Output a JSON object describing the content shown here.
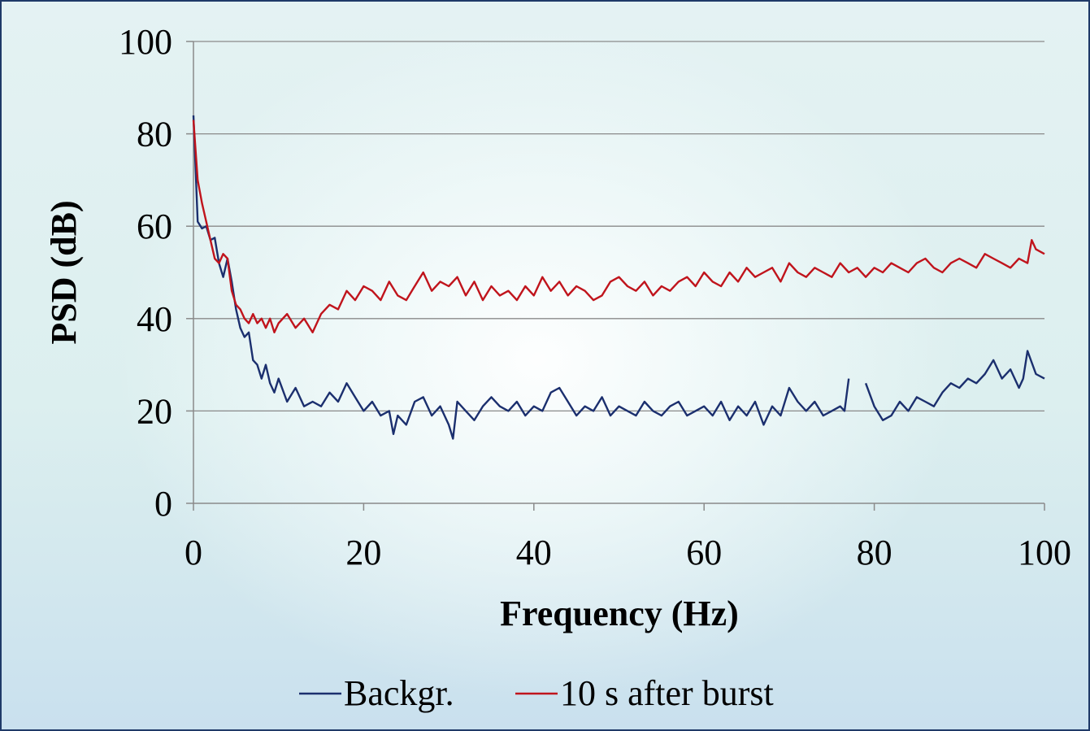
{
  "chart_data": {
    "type": "line",
    "title": "",
    "xlabel": "Frequency (Hz)",
    "ylabel": "PSD (dB)",
    "xlim": [
      0,
      100
    ],
    "ylim": [
      0,
      100
    ],
    "xticks": [
      0,
      20,
      40,
      60,
      80,
      100
    ],
    "yticks": [
      0,
      20,
      40,
      60,
      80,
      100
    ],
    "grid": "horizontal",
    "legend_position": "bottom",
    "series": [
      {
        "name": "Backgr.",
        "color": "#1b2f6e",
        "x": [
          0,
          0.5,
          1,
          1.5,
          2,
          2.5,
          3,
          3.5,
          4,
          4.5,
          5,
          5.5,
          6,
          6.5,
          7,
          7.5,
          8,
          8.5,
          9,
          9.5,
          10,
          11,
          12,
          13,
          14,
          15,
          16,
          17,
          18,
          19,
          20,
          21,
          22,
          23,
          23.5,
          24,
          25,
          26,
          27,
          28,
          29,
          30,
          30.5,
          31,
          32,
          33,
          34,
          35,
          36,
          37,
          38,
          39,
          40,
          41,
          42,
          43,
          44,
          45,
          46,
          47,
          48,
          49,
          50,
          51,
          52,
          53,
          54,
          55,
          56,
          57,
          58,
          59,
          60,
          61,
          62,
          63,
          64,
          65,
          66,
          67,
          68,
          69,
          70,
          71,
          72,
          73,
          74,
          75,
          76,
          76.5,
          77,
          78,
          79,
          80,
          81,
          82,
          83,
          84,
          85,
          86,
          87,
          88,
          89,
          90,
          91,
          92,
          93,
          94,
          95,
          96,
          97,
          97.5,
          98,
          99,
          100
        ],
        "y": [
          84,
          61,
          59.5,
          60,
          57,
          57.5,
          52,
          49,
          53,
          48,
          42,
          38,
          36,
          37,
          31,
          30,
          27,
          30,
          26,
          24,
          27,
          22,
          25,
          21,
          22,
          21,
          24,
          22,
          26,
          23,
          20,
          22,
          19,
          20,
          15,
          19,
          17,
          22,
          23,
          19,
          21,
          17,
          14,
          22,
          20,
          18,
          21,
          23,
          21,
          20,
          22,
          19,
          21,
          20,
          24,
          25,
          22,
          19,
          21,
          20,
          23,
          19,
          21,
          20,
          19,
          22,
          20,
          19,
          21,
          22,
          19,
          20,
          21,
          19,
          22,
          18,
          21,
          19,
          22,
          17,
          21,
          19,
          25,
          22,
          20,
          22,
          19,
          20,
          21,
          20,
          27,
          null,
          26,
          21,
          18,
          19,
          22,
          20,
          23,
          22,
          21,
          24,
          26,
          25,
          27,
          26,
          28,
          31,
          27,
          29,
          25,
          27,
          33,
          28,
          27
        ]
      },
      {
        "name": "10 s after burst",
        "color": "#c0141c",
        "x": [
          0,
          0.5,
          1,
          1.5,
          2,
          2.5,
          3,
          3.5,
          4,
          4.5,
          5,
          5.5,
          6,
          6.5,
          7,
          7.5,
          8,
          8.5,
          9,
          9.5,
          10,
          11,
          12,
          13,
          14,
          15,
          16,
          17,
          18,
          19,
          20,
          21,
          22,
          23,
          24,
          25,
          26,
          27,
          28,
          29,
          30,
          31,
          32,
          33,
          34,
          35,
          36,
          37,
          38,
          39,
          40,
          41,
          42,
          43,
          44,
          45,
          46,
          47,
          48,
          49,
          50,
          51,
          52,
          53,
          54,
          55,
          56,
          57,
          58,
          59,
          60,
          61,
          62,
          63,
          64,
          65,
          66,
          67,
          68,
          69,
          70,
          71,
          72,
          73,
          74,
          75,
          76,
          77,
          78,
          79,
          80,
          81,
          82,
          83,
          84,
          85,
          86,
          87,
          88,
          89,
          90,
          91,
          92,
          93,
          94,
          95,
          96,
          97,
          98,
          98.5,
          99,
          100
        ],
        "y": [
          83,
          70,
          65,
          61,
          57,
          53,
          52,
          54,
          53,
          46,
          43,
          42,
          40,
          39,
          41,
          39,
          40,
          38,
          40,
          37,
          39,
          41,
          38,
          40,
          37,
          41,
          43,
          42,
          46,
          44,
          47,
          46,
          44,
          48,
          45,
          44,
          47,
          50,
          46,
          48,
          47,
          49,
          45,
          48,
          44,
          47,
          45,
          46,
          44,
          47,
          45,
          49,
          46,
          48,
          45,
          47,
          46,
          44,
          45,
          48,
          49,
          47,
          46,
          48,
          45,
          47,
          46,
          48,
          49,
          47,
          50,
          48,
          47,
          50,
          48,
          51,
          49,
          50,
          51,
          48,
          52,
          50,
          49,
          51,
          50,
          49,
          52,
          50,
          51,
          49,
          51,
          50,
          52,
          51,
          50,
          52,
          53,
          51,
          50,
          52,
          53,
          52,
          51,
          54,
          53,
          52,
          51,
          53,
          52,
          57,
          55,
          54
        ]
      }
    ]
  }
}
